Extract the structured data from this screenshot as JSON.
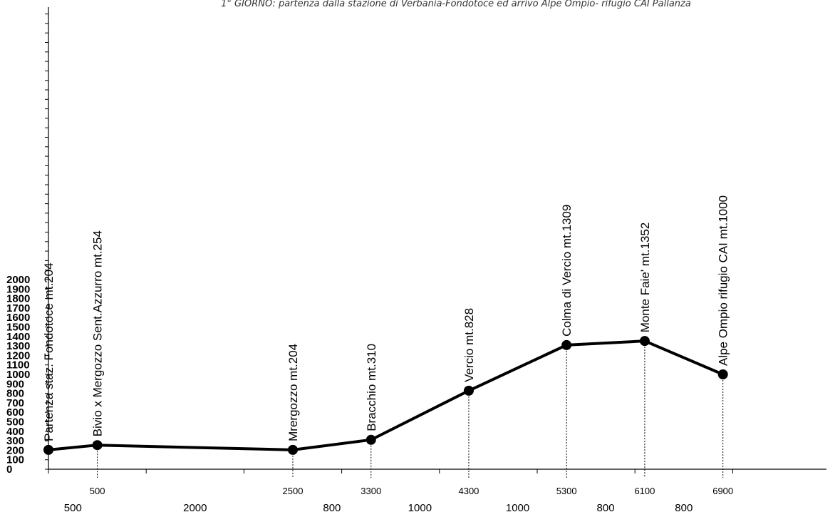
{
  "chart_data": {
    "type": "line",
    "title": "1° GIORNO: partenza dalla stazione di Verbania-Fondotoce ed arrivo Alpe Ompio- rifugio CAI Pallanza",
    "xlabel": "",
    "ylabel": "",
    "xlim": [
      0,
      7950
    ],
    "ylim": [
      0,
      2000
    ],
    "yticks": [
      "2000",
      "1900",
      "1800",
      "1700",
      "1600",
      "1500",
      "1400",
      "1300",
      "1200",
      "1100",
      "1000",
      "900",
      "800",
      "700",
      "600",
      "500",
      "400",
      "300",
      "200",
      "100",
      "0"
    ],
    "points": [
      {
        "x": 0,
        "y": 204,
        "label": "Partenza staz. Fondotoce mt.204",
        "xtick": ""
      },
      {
        "x": 500,
        "y": 254,
        "label": "Bivio x Mergozzo Sent.Azzurro mt.254",
        "xtick": "500"
      },
      {
        "x": 2500,
        "y": 204,
        "label": "Mrergozzo mt.204",
        "xtick": "2500"
      },
      {
        "x": 3300,
        "y": 310,
        "label": "Bracchio mt.310",
        "xtick": "3300"
      },
      {
        "x": 4300,
        "y": 828,
        "label": "Vercio mt.828",
        "xtick": "4300"
      },
      {
        "x": 5300,
        "y": 1309,
        "label": "Colma di Vercio mt.1309",
        "xtick": "5300"
      },
      {
        "x": 6100,
        "y": 1352,
        "label": "Monte Faie' mt.1352",
        "xtick": "6100"
      },
      {
        "x": 6900,
        "y": 1000,
        "label": "Alpe Ompio rifugio CAI mt.1000",
        "xtick": "6900"
      }
    ],
    "segments": [
      "500",
      "2000",
      "800",
      "1000",
      "1000",
      "800",
      "800"
    ],
    "grid": false,
    "line_color": "#000000"
  }
}
